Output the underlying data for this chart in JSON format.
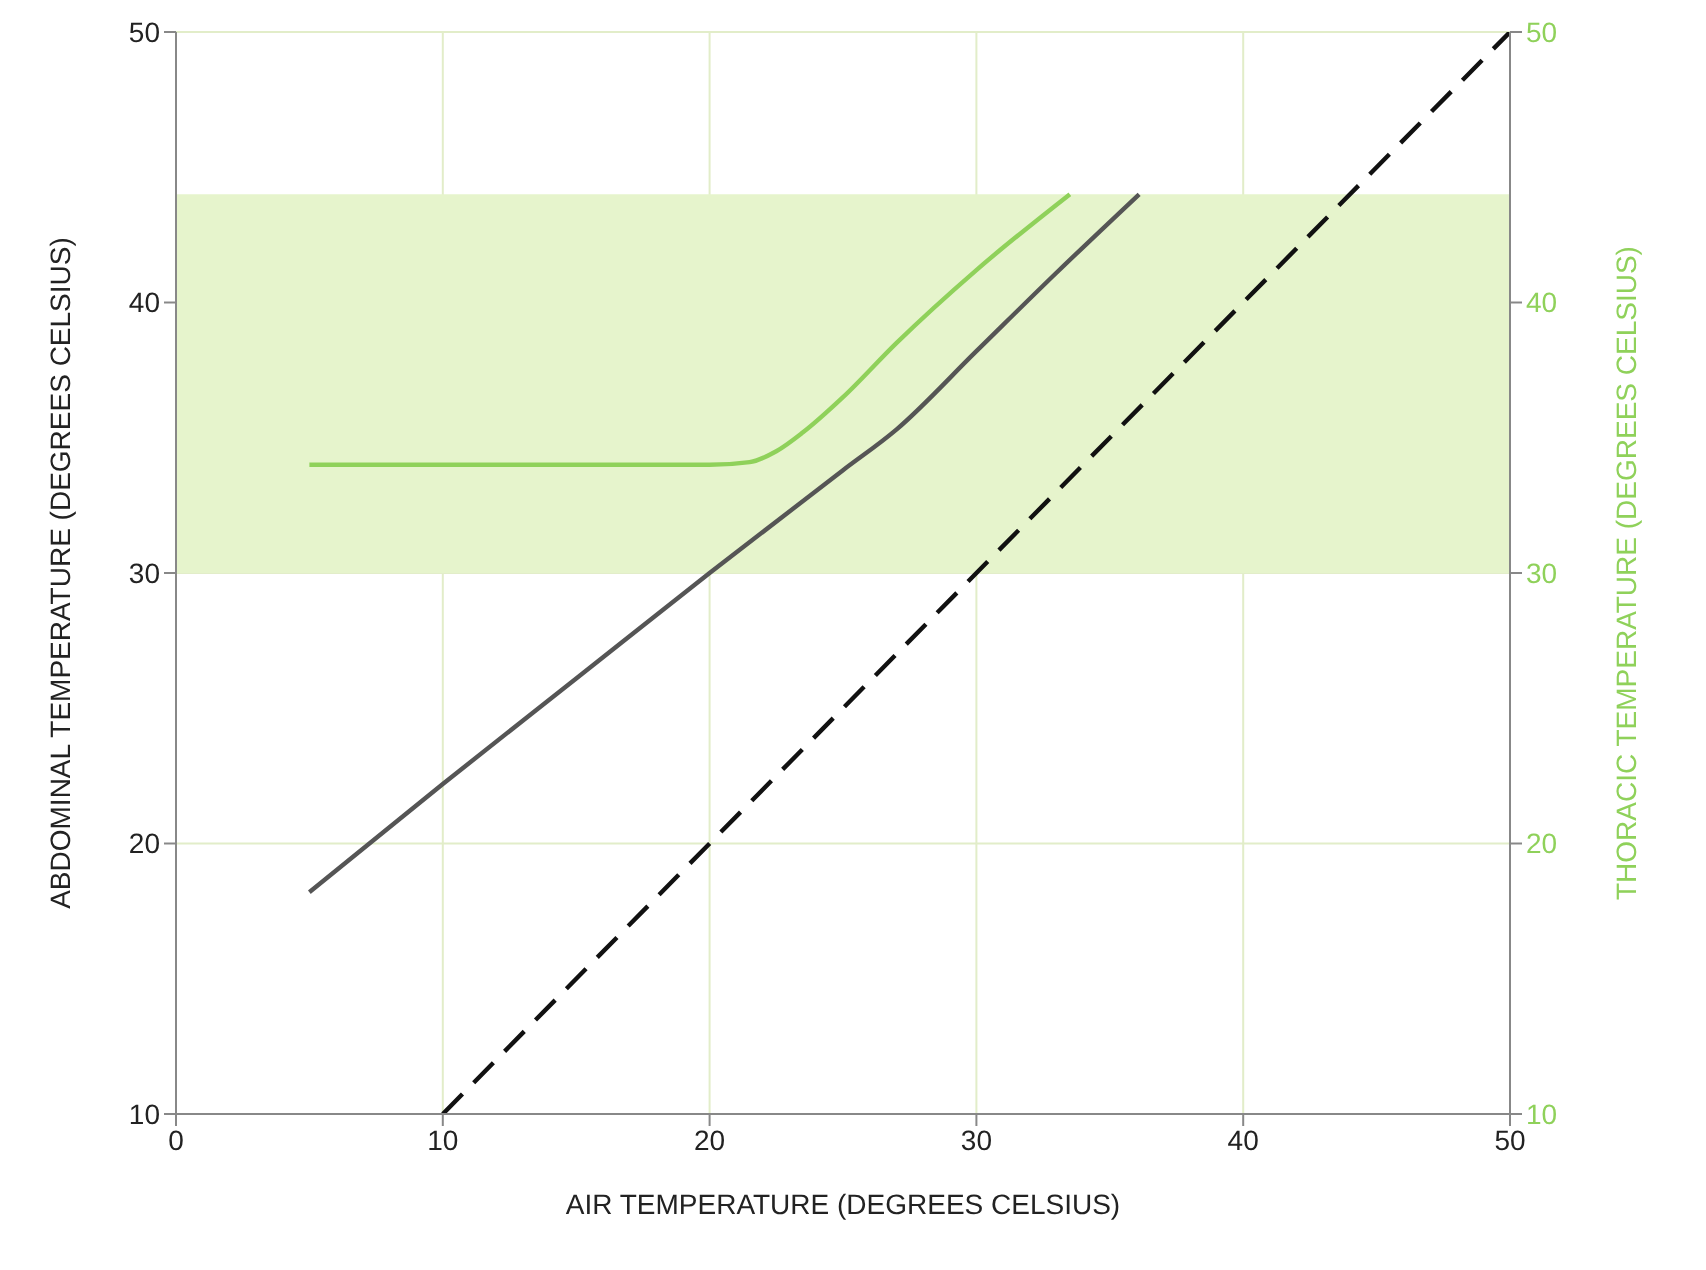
{
  "chart_data": {
    "type": "line",
    "xlabel": "AIR TEMPERATURE (DEGREES CELSIUS)",
    "ylabel": "ABDOMINAL TEMPERATURE (DEGREES CELSIUS)",
    "y2label": "THORACIC TEMPERATURE (DEGREES CELSIUS)",
    "xlim": [
      0,
      50
    ],
    "xticks": [
      0,
      10,
      20,
      30,
      40,
      50
    ],
    "ylim": [
      10,
      50
    ],
    "yticks": [
      10,
      20,
      30,
      40,
      50
    ],
    "y2lim": [
      10,
      50
    ],
    "y2ticks": [
      10,
      20,
      30,
      40,
      50
    ],
    "grid": true,
    "legend": false,
    "marker": "none",
    "bands": [
      {
        "axis": "y",
        "from": 30,
        "to": 44,
        "color": "#e6f4cc"
      }
    ],
    "series": [
      {
        "color": "#555555",
        "line_style": "solid",
        "x": [
          5,
          10,
          15,
          20,
          25,
          27,
          30,
          33,
          36.1
        ],
        "values": [
          18.2,
          22.2,
          26.1,
          30,
          33.8,
          35.3,
          38.2,
          41.1,
          44
        ]
      },
      {
        "color": "#8fd15a",
        "line_style": "solid",
        "axis": "y2",
        "x": [
          5,
          20,
          21.5,
          22.5,
          23.5,
          25,
          27,
          30,
          33.5
        ],
        "values": [
          34,
          34,
          34.1,
          34.5,
          35.2,
          36.5,
          38.5,
          41.2,
          44
        ]
      },
      {
        "color": "#111111",
        "line_style": "dashed",
        "x": [
          10,
          50
        ],
        "values": [
          10,
          50
        ]
      }
    ]
  }
}
